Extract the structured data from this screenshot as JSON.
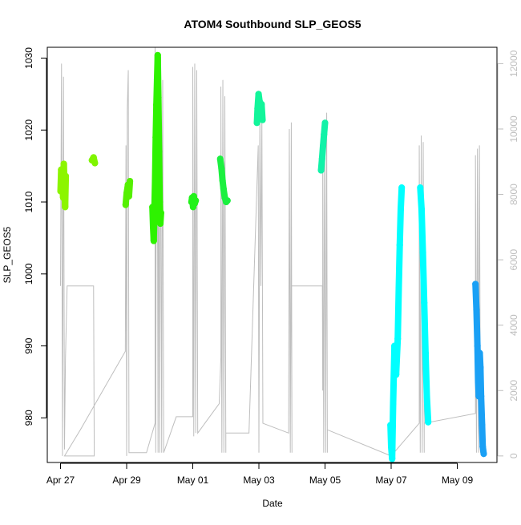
{
  "chart_data": {
    "type": "scatter",
    "title": "ATOM4 Southbound SLP_GEOS5",
    "xlabel": "Date",
    "ylabel": "SLP_GEOS5",
    "x_ticks": [
      "Apr 27",
      "Apr 29",
      "May 01",
      "May 03",
      "May 05",
      "May 07",
      "May 09"
    ],
    "x_tick_days": [
      0,
      2,
      4,
      6,
      8,
      10,
      12
    ],
    "xlim_days": [
      -0.4,
      13.2
    ],
    "y_ticks": [
      980,
      990,
      1000,
      1010,
      1020,
      1030
    ],
    "ylim": [
      973.8,
      1031.5
    ],
    "y2_ticks": [
      0,
      2000,
      4000,
      6000,
      8000,
      10000,
      12000
    ],
    "y2lim": [
      -200,
      12500
    ],
    "right_axis_color": "#bebebe",
    "grid": false,
    "line_series": {
      "name": "",
      "color": "#bebebe",
      "points": [
        [
          0.0,
          5200
        ],
        [
          0.03,
          12000
        ],
        [
          0.06,
          0
        ],
        [
          0.09,
          11600
        ],
        [
          0.12,
          200
        ],
        [
          0.15,
          3000
        ],
        [
          0.2,
          5200
        ],
        [
          1.0,
          5200
        ],
        [
          1.02,
          0
        ],
        [
          0.12,
          0
        ],
        [
          0.6,
          800
        ],
        [
          1.96,
          3200
        ],
        [
          1.98,
          9500
        ],
        [
          2.0,
          0
        ],
        [
          2.02,
          10600
        ],
        [
          2.05,
          11800
        ],
        [
          2.07,
          600
        ],
        [
          2.07,
          100
        ],
        [
          2.6,
          100
        ],
        [
          2.86,
          1000
        ],
        [
          2.86,
          12500
        ],
        [
          2.88,
          100
        ],
        [
          2.9,
          12300
        ],
        [
          2.93,
          9800
        ],
        [
          2.95,
          100
        ],
        [
          2.97,
          11700
        ],
        [
          3.0,
          100
        ],
        [
          3.03,
          12200
        ],
        [
          3.06,
          100
        ],
        [
          3.09,
          11500
        ],
        [
          3.12,
          100
        ],
        [
          3.12,
          100
        ],
        [
          3.5,
          1200
        ],
        [
          4.0,
          1200
        ],
        [
          4.0,
          11900
        ],
        [
          4.03,
          600
        ],
        [
          4.06,
          12000
        ],
        [
          4.09,
          700
        ],
        [
          4.12,
          11800
        ],
        [
          4.15,
          700
        ],
        [
          4.15,
          700
        ],
        [
          4.8,
          1600
        ],
        [
          4.85,
          3000
        ],
        [
          4.85,
          11300
        ],
        [
          4.88,
          100
        ],
        [
          4.91,
          11500
        ],
        [
          4.94,
          100
        ],
        [
          4.97,
          11000
        ],
        [
          5.0,
          100
        ],
        [
          5.0,
          700
        ],
        [
          5.7,
          700
        ],
        [
          5.98,
          9500
        ],
        [
          6.0,
          100
        ],
        [
          6.03,
          10500
        ],
        [
          6.06,
          5200
        ],
        [
          6.09,
          10400
        ],
        [
          6.12,
          1200
        ],
        [
          6.12,
          1000
        ],
        [
          6.9,
          700
        ],
        [
          6.92,
          10000
        ],
        [
          6.95,
          100
        ],
        [
          6.98,
          10200
        ],
        [
          7.0,
          100
        ],
        [
          6.98,
          5200
        ],
        [
          7.92,
          5200
        ],
        [
          7.93,
          2000
        ],
        [
          7.93,
          9700
        ],
        [
          7.96,
          100
        ],
        [
          7.99,
          10200
        ],
        [
          8.02,
          100
        ],
        [
          8.05,
          10500
        ],
        [
          8.07,
          100
        ],
        [
          8.07,
          800
        ],
        [
          10.0,
          0
        ],
        [
          10.85,
          1000
        ],
        [
          10.85,
          9500
        ],
        [
          10.88,
          100
        ],
        [
          10.91,
          9800
        ],
        [
          10.94,
          100
        ],
        [
          10.97,
          9600
        ],
        [
          11.0,
          100
        ],
        [
          11.0,
          1000
        ],
        [
          12.55,
          1300
        ],
        [
          12.55,
          9200
        ],
        [
          12.58,
          100
        ],
        [
          12.61,
          9400
        ],
        [
          12.64,
          100
        ],
        [
          12.67,
          9500
        ],
        [
          12.7,
          100
        ]
      ]
    },
    "point_segments": [
      {
        "color": "#8cf500",
        "points": [
          [
            0.0,
            1011.5
          ],
          [
            0.02,
            1014.5
          ],
          [
            0.05,
            1013.2
          ],
          [
            0.08,
            1010.6
          ],
          [
            0.1,
            1015.3
          ],
          [
            0.12,
            1012.2
          ],
          [
            0.14,
            1009.3
          ],
          [
            0.16,
            1013.6
          ]
        ]
      },
      {
        "color": "#80f500",
        "points": [
          [
            0.95,
            1015.8
          ],
          [
            1.0,
            1016.2
          ],
          [
            1.04,
            1015.4
          ]
        ]
      },
      {
        "color": "#55f000",
        "points": [
          [
            1.97,
            1009.6
          ],
          [
            2.0,
            1011.2
          ],
          [
            2.04,
            1012.4
          ],
          [
            2.07,
            1010.8
          ],
          [
            2.1,
            1012.9
          ]
        ]
      },
      {
        "color": "#2ef200",
        "points": [
          [
            2.78,
            1009.3
          ],
          [
            2.8,
            1006.5
          ],
          [
            2.82,
            1004.6
          ],
          [
            2.84,
            1008.8
          ],
          [
            2.86,
            1013.0
          ],
          [
            2.88,
            1019.0
          ],
          [
            2.9,
            1023.5
          ],
          [
            2.92,
            1027.0
          ],
          [
            2.94,
            1030.4
          ],
          [
            2.96,
            1024.5
          ],
          [
            2.98,
            1017.0
          ],
          [
            3.0,
            1010.0
          ],
          [
            3.02,
            1007.0
          ],
          [
            3.04,
            1008.5
          ]
        ]
      },
      {
        "color": "#22f21a",
        "points": [
          [
            3.96,
            1010.0
          ],
          [
            3.98,
            1010.6
          ],
          [
            4.01,
            1009.3
          ],
          [
            4.03,
            1010.8
          ],
          [
            4.06,
            1009.8
          ],
          [
            4.09,
            1010.2
          ]
        ]
      },
      {
        "color": "#1cf040",
        "points": [
          [
            4.83,
            1016.0
          ],
          [
            4.87,
            1014.6
          ],
          [
            4.9,
            1013.0
          ],
          [
            4.93,
            1011.8
          ],
          [
            4.97,
            1010.6
          ],
          [
            5.01,
            1010.0
          ],
          [
            5.05,
            1010.2
          ]
        ]
      },
      {
        "color": "#12f59a",
        "points": [
          [
            5.94,
            1021.0
          ],
          [
            5.96,
            1023.0
          ],
          [
            5.99,
            1025.0
          ],
          [
            6.02,
            1024.0
          ],
          [
            6.05,
            1022.4
          ],
          [
            6.08,
            1023.6
          ],
          [
            6.11,
            1021.4
          ]
        ]
      },
      {
        "color": "#12f2a8",
        "points": [
          [
            7.88,
            1014.4
          ],
          [
            7.91,
            1016.0
          ],
          [
            7.94,
            1017.8
          ],
          [
            7.97,
            1019.4
          ],
          [
            8.0,
            1021.0
          ]
        ]
      },
      {
        "color": "#00ffff",
        "points": [
          [
            9.98,
            979.0
          ],
          [
            10.0,
            976.0
          ],
          [
            10.03,
            974.3
          ],
          [
            10.06,
            982.0
          ],
          [
            10.1,
            990.0
          ],
          [
            10.15,
            986.0
          ],
          [
            10.2,
            991.0
          ],
          [
            10.23,
            998.0
          ],
          [
            10.26,
            1004.0
          ],
          [
            10.29,
            1009.0
          ],
          [
            10.32,
            1012.0
          ]
        ]
      },
      {
        "color": "#00ffff",
        "points": [
          [
            10.88,
            1012.0
          ],
          [
            10.92,
            1009.0
          ],
          [
            10.96,
            1003.0
          ],
          [
            11.0,
            996.0
          ],
          [
            11.04,
            989.0
          ],
          [
            11.08,
            983.0
          ],
          [
            11.12,
            979.4
          ]
        ]
      },
      {
        "color": "#1aa0f5",
        "points": [
          [
            12.55,
            998.6
          ],
          [
            12.58,
            995.0
          ],
          [
            12.61,
            990.0
          ],
          [
            12.63,
            985.0
          ],
          [
            12.65,
            983.0
          ],
          [
            12.68,
            989.0
          ],
          [
            12.7,
            987.0
          ],
          [
            12.72,
            983.0
          ],
          [
            12.75,
            979.0
          ],
          [
            12.77,
            976.0
          ],
          [
            12.8,
            975.0
          ]
        ]
      }
    ]
  }
}
